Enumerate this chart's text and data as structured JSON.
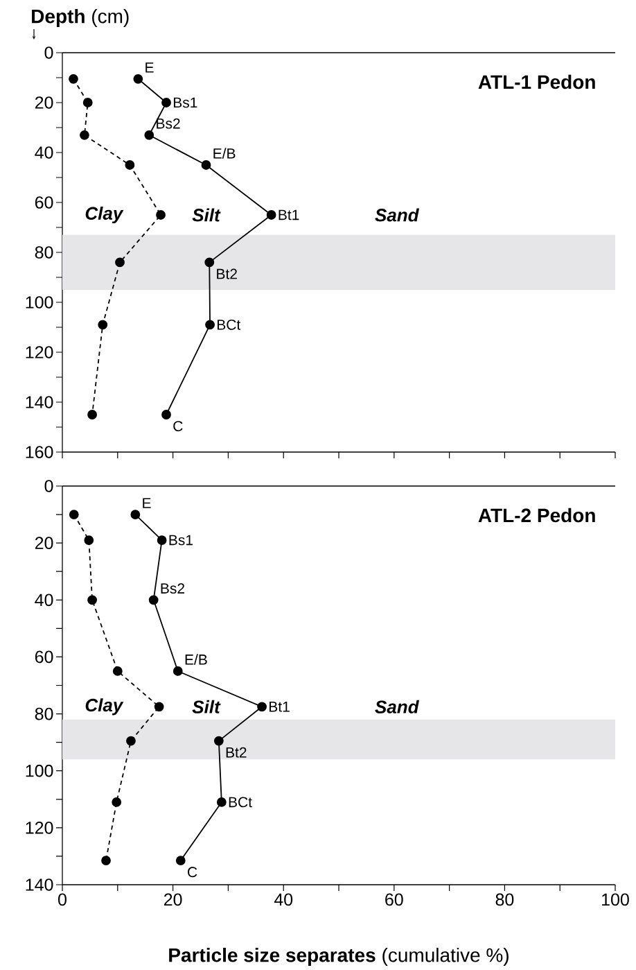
{
  "chart_data": [
    {
      "type": "line",
      "title": "ATL-1 Pedon",
      "ylabel": "**Depth** (cm)",
      "marker": "circle",
      "tick_labels": "y",
      "xlim": [
        0,
        100
      ],
      "ylim": [
        160,
        0
      ],
      "xticks": [
        0,
        {
          "value": 10,
          "label": null
        },
        20,
        {
          "value": 30,
          "label": null
        },
        40,
        {
          "value": 50,
          "label": null
        },
        60,
        {
          "value": 70,
          "label": null
        },
        80,
        {
          "value": 90,
          "label": null
        },
        100
      ],
      "yticks": [
        0,
        {
          "value": 10,
          "label": null
        },
        20,
        {
          "value": 30,
          "label": null
        },
        40,
        {
          "value": 50,
          "label": null
        },
        60,
        {
          "value": 70,
          "label": null
        },
        80,
        {
          "value": 90,
          "label": null
        },
        100,
        {
          "value": 110,
          "label": null
        },
        120,
        {
          "value": 130,
          "label": null
        },
        140,
        {
          "value": 150,
          "label": null
        },
        160
      ],
      "bands": [
        {
          "axis": "y",
          "from": 73,
          "to": 95,
          "color": "#e6e6e8"
        }
      ],
      "series": [
        {
          "color": "#000000",
          "line_style": "dashed",
          "x": [
            2,
            4.6,
            4,
            12.2,
            17.8,
            10.4,
            7.3,
            5.4
          ],
          "values": [
            10.5,
            20,
            33,
            45,
            65,
            84,
            109,
            145
          ]
        },
        {
          "color": "#000000",
          "line_style": "solid",
          "x": [
            13.7,
            18.8,
            15.7,
            26,
            37.8,
            26.6,
            26.7,
            18.8
          ],
          "values": [
            10.5,
            20,
            33,
            45,
            65,
            84,
            109,
            145
          ]
        }
      ],
      "annotations": [
        {
          "text": "E",
          "x": 13.7,
          "y": 10.5
        },
        {
          "text": "Bs1",
          "x": 18.8,
          "y": 20
        },
        {
          "text": "Bs2",
          "x": 15.7,
          "y": 33
        },
        {
          "text": "E/B",
          "x": 26,
          "y": 45
        },
        {
          "text": "Bt1",
          "x": 37.8,
          "y": 65
        },
        {
          "text": "Bt2",
          "x": 26.6,
          "y": 84
        },
        {
          "text": "BCt",
          "x": 26.7,
          "y": 109
        },
        {
          "text": "C",
          "x": 18.8,
          "y": 145
        },
        "Clay",
        "Silt",
        "Sand"
      ]
    },
    {
      "type": "line",
      "title": "ATL-2 Pedon",
      "xlabel": "**Particle size separates** (cumulative %)",
      "marker": "circle",
      "xlim": [
        0,
        100
      ],
      "ylim": [
        140,
        0
      ],
      "xticks": [
        0,
        {
          "value": 10,
          "label": null
        },
        20,
        {
          "value": 30,
          "label": null
        },
        40,
        {
          "value": 50,
          "label": null
        },
        60,
        {
          "value": 70,
          "label": null
        },
        80,
        {
          "value": 90,
          "label": null
        },
        100
      ],
      "yticks": [
        0,
        {
          "value": 10,
          "label": null
        },
        20,
        {
          "value": 30,
          "label": null
        },
        40,
        {
          "value": 50,
          "label": null
        },
        60,
        {
          "value": 70,
          "label": null
        },
        80,
        {
          "value": 90,
          "label": null
        },
        100,
        {
          "value": 110,
          "label": null
        },
        120,
        {
          "value": 130,
          "label": null
        },
        140
      ],
      "bands": [
        {
          "axis": "y",
          "from": 82,
          "to": 96,
          "color": "#e6e6e8"
        }
      ],
      "series": [
        {
          "color": "#000000",
          "line_style": "dashed",
          "x": [
            2.1,
            4.8,
            5.4,
            10,
            17.5,
            12.4,
            9.8,
            7.9
          ],
          "values": [
            10,
            19,
            40,
            65,
            77.5,
            89.5,
            111,
            131.5
          ]
        },
        {
          "color": "#000000",
          "line_style": "solid",
          "x": [
            13.2,
            18,
            16.5,
            20.9,
            36.1,
            28.3,
            28.8,
            21.4
          ],
          "values": [
            10,
            19,
            40,
            65,
            77.5,
            89.5,
            111,
            131.5
          ]
        }
      ],
      "annotations": [
        {
          "text": "E",
          "x": 13.2,
          "y": 10
        },
        {
          "text": "Bs1",
          "x": 18,
          "y": 19
        },
        {
          "text": "Bs2",
          "x": 16.5,
          "y": 40
        },
        {
          "text": "E/B",
          "x": 20.9,
          "y": 65
        },
        {
          "text": "Bt1",
          "x": 36.1,
          "y": 77.5
        },
        {
          "text": "Bt2",
          "x": 28.3,
          "y": 89.5
        },
        {
          "text": "BCt",
          "x": 28.8,
          "y": 111
        },
        {
          "text": "C",
          "x": 21.4,
          "y": 131.5
        },
        "Clay",
        "Silt",
        "Sand"
      ]
    }
  ]
}
